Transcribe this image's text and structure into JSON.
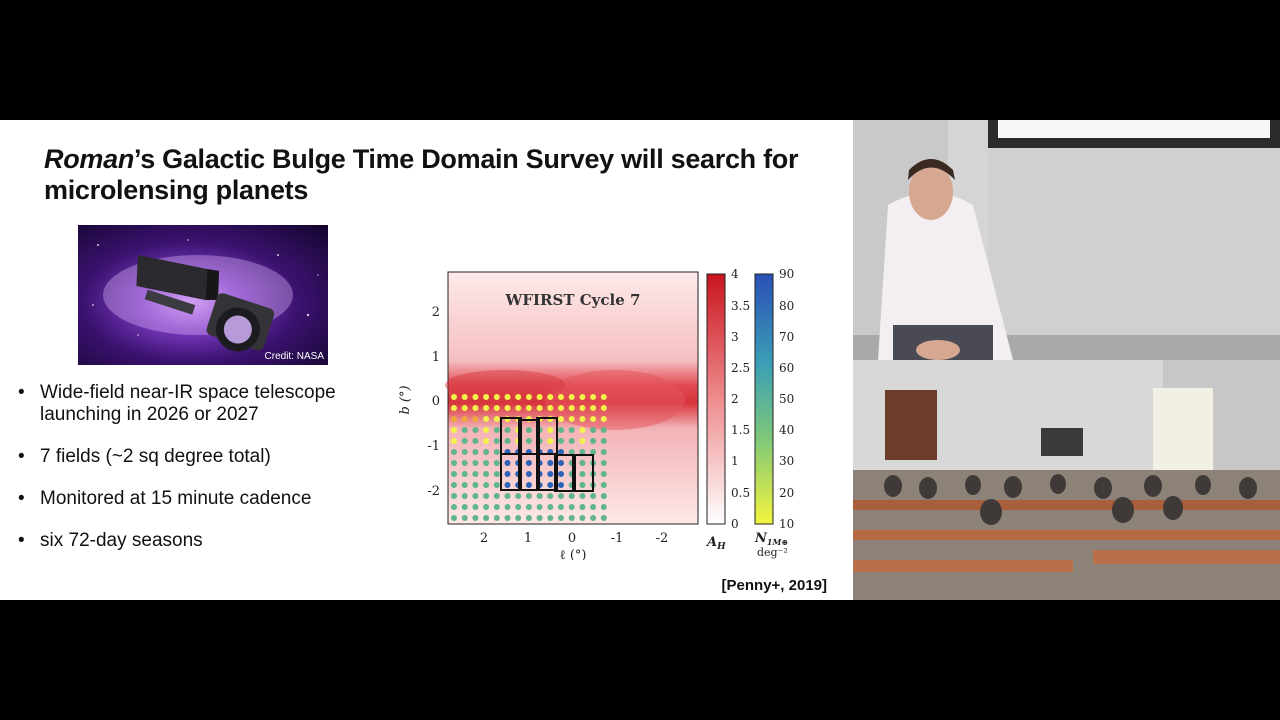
{
  "slide": {
    "title_italic": "Roman",
    "title_rest": "’s Galactic Bulge Time Domain Survey will search for microlensing planets",
    "image_credit": "Credit: NASA",
    "bullets": [
      "Wide-field near-IR space telescope launching in 2026 or 2027",
      "7 fields (~2 sq degree total)",
      " Monitored at 15 minute cadence",
      "six 72-day seasons"
    ],
    "citation": "[Penny+, 2019]"
  },
  "figure": {
    "map_title": "WFIRST Cycle 7",
    "x_axis_label": "ℓ (°)",
    "y_axis_label": "b (°)",
    "x_ticks": [
      "2",
      "1",
      "0",
      "-1",
      "-2"
    ],
    "y_ticks": [
      "2",
      "1",
      "0",
      "-1",
      "-2"
    ],
    "colorbar_ah": {
      "label": "A",
      "label_sub": "H",
      "ticks": [
        "4",
        "3.5",
        "3",
        "2.5",
        "2",
        "1.5",
        "1",
        "0.5",
        "0"
      ]
    },
    "colorbar_n": {
      "label": "N",
      "label_sub": "1M⊕",
      "unit": "deg⁻²",
      "ticks": [
        "90",
        "80",
        "70",
        "60",
        "50",
        "40",
        "30",
        "20",
        "10"
      ]
    },
    "colors": {
      "extinction_high": "#d2262e",
      "extinction_low": "#ffffff",
      "n_high": "#2a63b8",
      "n_mid": "#5fb58c",
      "n_low": "#f2f24a"
    }
  }
}
